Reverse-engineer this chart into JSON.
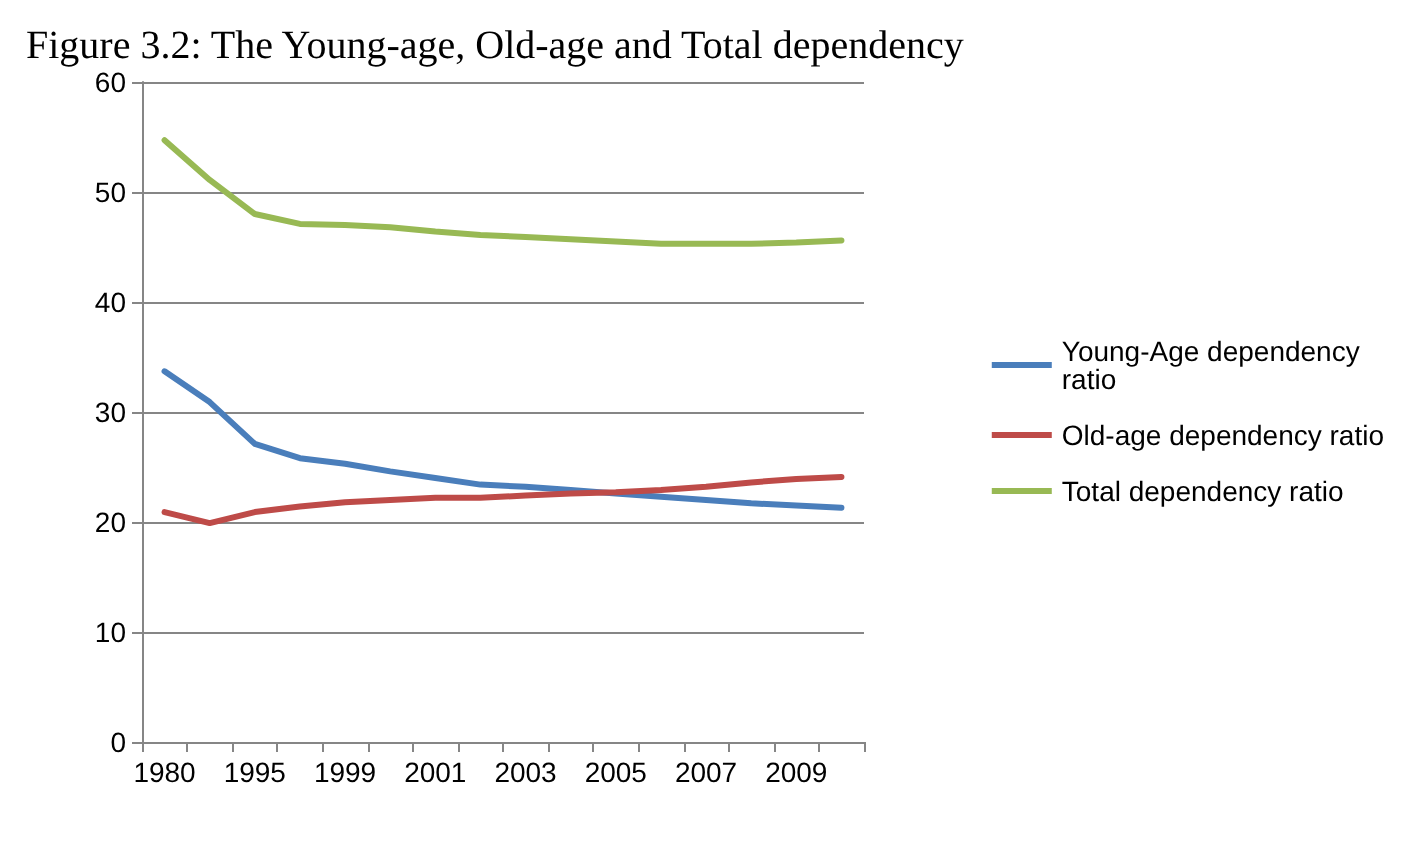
{
  "chart_data": {
    "type": "line",
    "title": "Figure 3.2: The Young-age, Old-age and Total dependency",
    "categories": [
      "1980",
      null,
      "1995",
      null,
      "1999",
      null,
      "2001",
      null,
      "2003",
      null,
      "2005",
      null,
      "2007",
      null,
      "2009",
      null
    ],
    "series": [
      {
        "name": "Young-Age dependency ratio",
        "color": "#4a7ebb",
        "values": [
          33.7,
          30.9,
          27.1,
          25.8,
          25.3,
          24.6,
          24.0,
          23.4,
          23.2,
          22.9,
          22.6,
          22.3,
          22.0,
          21.7,
          21.5,
          21.3
        ]
      },
      {
        "name": "Old-age dependency ratio",
        "color": "#be4b48",
        "values": [
          20.9,
          19.9,
          20.9,
          21.4,
          21.8,
          22.0,
          22.2,
          22.2,
          22.4,
          22.6,
          22.7,
          22.9,
          23.2,
          23.6,
          23.9,
          24.1
        ]
      },
      {
        "name": "Total dependency ratio",
        "color": "#98b954",
        "values": [
          54.7,
          51.1,
          48.0,
          47.1,
          47.0,
          46.8,
          46.4,
          46.1,
          45.9,
          45.7,
          45.5,
          45.3,
          45.3,
          45.3,
          45.4,
          45.6
        ]
      }
    ],
    "ylim": [
      0,
      60
    ],
    "yticks": [
      0,
      10,
      20,
      30,
      40,
      50,
      60
    ],
    "grid": "y",
    "legend": "right",
    "marker": "none",
    "line_style": "solid"
  }
}
